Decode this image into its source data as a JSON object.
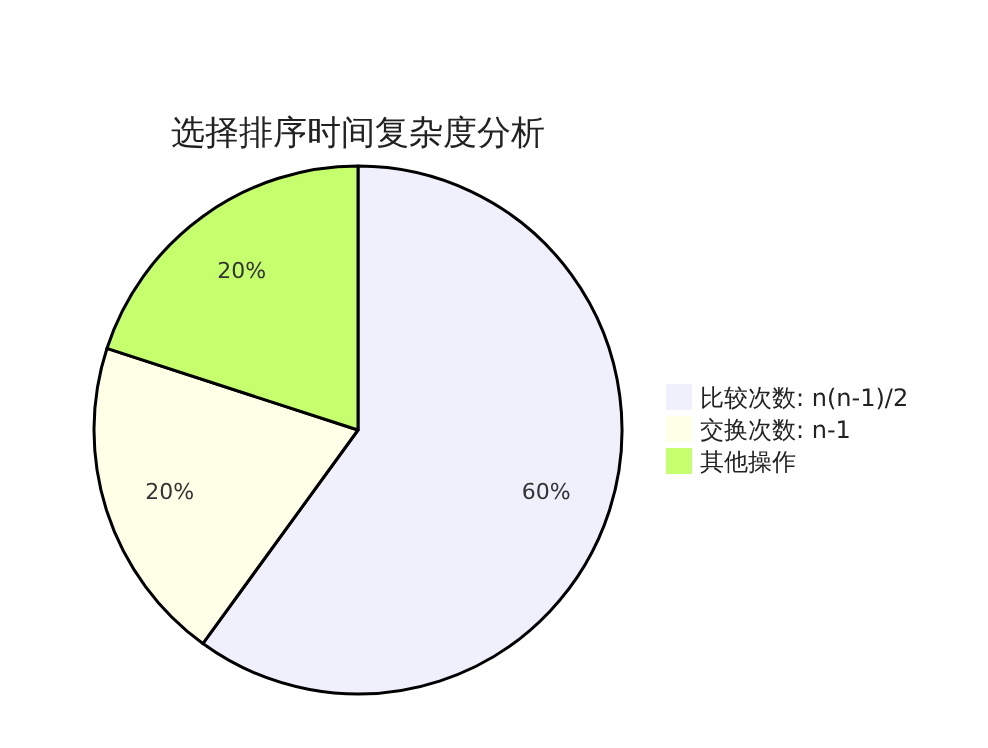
{
  "chart_data": {
    "type": "pie",
    "title": "选择排序时间复杂度分析",
    "categories": [
      "比较次数: n(n-1)/2",
      "交换次数: n-1",
      "其他操作"
    ],
    "values": [
      60,
      20,
      20
    ],
    "colors": [
      "#f0f0fd",
      "#ffffe8",
      "#c6ff6d"
    ],
    "value_labels": [
      "60%",
      "20%",
      "20%"
    ],
    "legend": "right"
  }
}
